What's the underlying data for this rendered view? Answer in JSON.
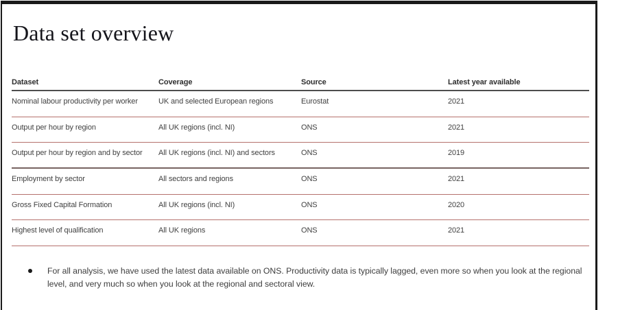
{
  "slide": {
    "title": "Data set overview"
  },
  "table": {
    "columns": [
      "Dataset",
      "Coverage",
      "Source",
      "Latest year available"
    ],
    "rows": [
      {
        "dataset": "Nominal labour productivity per worker",
        "coverage": "UK and selected European regions",
        "source": "Eurostat",
        "latest_year": "2021"
      },
      {
        "dataset": "Output per hour by region",
        "coverage": "All UK regions (incl. NI)",
        "source": "ONS",
        "latest_year": "2021"
      },
      {
        "dataset": "Output per hour by region and by sector",
        "coverage": "All UK regions (incl. NI) and sectors",
        "source": "ONS",
        "latest_year": "2019"
      },
      {
        "dataset": "Employment by sector",
        "coverage": "All sectors and regions",
        "source": "ONS",
        "latest_year": "2021"
      },
      {
        "dataset": "Gross Fixed Capital Formation",
        "coverage": "All UK regions (incl. NI)",
        "source": "ONS",
        "latest_year": "2020"
      },
      {
        "dataset": "Highest level of qualification",
        "coverage": "All UK regions",
        "source": "ONS",
        "latest_year": "2021"
      }
    ]
  },
  "notes": {
    "bullet": "For all analysis, we have used the latest data available on ONS. Productivity data is typically lagged, even more so when you look at the regional level, and very much so when you look at the regional and sectoral view."
  },
  "colors": {
    "frame_border": "#1a1a1a",
    "header_rule": "#4d4d4d",
    "row_rule": "#b5716c",
    "section_rule": "#776361",
    "title_text": "#15151b",
    "body_text": "#3f3f3f"
  }
}
